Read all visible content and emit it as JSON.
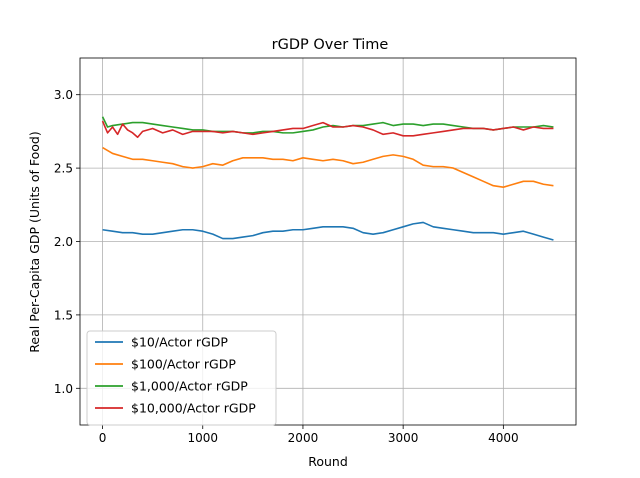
{
  "chart_data": {
    "type": "line",
    "title": "rGDP Over Time",
    "xlabel": "Round",
    "ylabel": "Real Per-Capita GDP (Units of Food)",
    "xlim": [
      -225,
      4725
    ],
    "ylim": [
      0.75,
      3.25
    ],
    "xticks": [
      0,
      1000,
      2000,
      3000,
      4000
    ],
    "yticks": [
      1.0,
      1.5,
      2.0,
      2.5,
      3.0
    ],
    "ytick_labels": [
      "1.0",
      "1.5",
      "2.0",
      "2.5",
      "3.0"
    ],
    "grid": true,
    "legend_position": "lower-left",
    "colors": [
      "#1f77b4",
      "#ff7f0e",
      "#2ca02c",
      "#d62728"
    ],
    "series": [
      {
        "name": "$10/Actor rGDP",
        "x": [
          0,
          100,
          200,
          300,
          400,
          500,
          600,
          700,
          800,
          900,
          1000,
          1100,
          1200,
          1300,
          1400,
          1500,
          1600,
          1700,
          1800,
          1900,
          2000,
          2100,
          2200,
          2300,
          2400,
          2500,
          2600,
          2700,
          2800,
          2900,
          3000,
          3100,
          3200,
          3300,
          3400,
          3500,
          3600,
          3700,
          3800,
          3900,
          4000,
          4100,
          4200,
          4300,
          4400,
          4500
        ],
        "values": [
          2.08,
          2.07,
          2.06,
          2.06,
          2.05,
          2.05,
          2.06,
          2.07,
          2.08,
          2.08,
          2.07,
          2.05,
          2.02,
          2.02,
          2.03,
          2.04,
          2.06,
          2.07,
          2.07,
          2.08,
          2.08,
          2.09,
          2.1,
          2.1,
          2.1,
          2.09,
          2.06,
          2.05,
          2.06,
          2.08,
          2.1,
          2.12,
          2.13,
          2.1,
          2.09,
          2.08,
          2.07,
          2.06,
          2.06,
          2.06,
          2.05,
          2.06,
          2.07,
          2.05,
          2.03,
          2.01
        ]
      },
      {
        "name": "$100/Actor rGDP",
        "x": [
          0,
          100,
          200,
          300,
          400,
          500,
          600,
          700,
          800,
          900,
          1000,
          1100,
          1200,
          1300,
          1400,
          1500,
          1600,
          1700,
          1800,
          1900,
          2000,
          2100,
          2200,
          2300,
          2400,
          2500,
          2600,
          2700,
          2800,
          2900,
          3000,
          3100,
          3200,
          3300,
          3400,
          3500,
          3600,
          3700,
          3800,
          3900,
          4000,
          4100,
          4200,
          4300,
          4400,
          4500
        ],
        "values": [
          2.64,
          2.6,
          2.58,
          2.56,
          2.56,
          2.55,
          2.54,
          2.53,
          2.51,
          2.5,
          2.51,
          2.53,
          2.52,
          2.55,
          2.57,
          2.57,
          2.57,
          2.56,
          2.56,
          2.55,
          2.57,
          2.56,
          2.55,
          2.56,
          2.55,
          2.53,
          2.54,
          2.56,
          2.58,
          2.59,
          2.58,
          2.56,
          2.52,
          2.51,
          2.51,
          2.5,
          2.47,
          2.44,
          2.41,
          2.38,
          2.37,
          2.39,
          2.41,
          2.41,
          2.39,
          2.38
        ]
      },
      {
        "name": "$1,000/Actor rGDP",
        "x": [
          0,
          50,
          100,
          200,
          300,
          400,
          500,
          600,
          700,
          800,
          900,
          1000,
          1100,
          1200,
          1300,
          1400,
          1500,
          1600,
          1700,
          1800,
          1900,
          2000,
          2100,
          2200,
          2300,
          2400,
          2500,
          2600,
          2700,
          2800,
          2900,
          3000,
          3100,
          3200,
          3300,
          3400,
          3500,
          3600,
          3700,
          3800,
          3900,
          4000,
          4100,
          4200,
          4300,
          4400,
          4500
        ],
        "values": [
          2.85,
          2.78,
          2.79,
          2.8,
          2.81,
          2.81,
          2.8,
          2.79,
          2.78,
          2.77,
          2.76,
          2.76,
          2.75,
          2.75,
          2.75,
          2.74,
          2.74,
          2.75,
          2.75,
          2.74,
          2.74,
          2.75,
          2.76,
          2.78,
          2.79,
          2.78,
          2.79,
          2.79,
          2.8,
          2.81,
          2.79,
          2.8,
          2.8,
          2.79,
          2.8,
          2.8,
          2.79,
          2.78,
          2.77,
          2.77,
          2.76,
          2.77,
          2.78,
          2.78,
          2.78,
          2.79,
          2.78
        ]
      },
      {
        "name": "$10,000/Actor rGDP",
        "x": [
          0,
          50,
          100,
          150,
          200,
          250,
          300,
          350,
          400,
          500,
          600,
          700,
          800,
          900,
          1000,
          1100,
          1200,
          1300,
          1400,
          1500,
          1600,
          1700,
          1800,
          1900,
          2000,
          2100,
          2200,
          2300,
          2400,
          2500,
          2600,
          2700,
          2800,
          2900,
          3000,
          3100,
          3200,
          3300,
          3400,
          3500,
          3600,
          3700,
          3800,
          3900,
          4000,
          4100,
          4200,
          4300,
          4400,
          4500
        ],
        "values": [
          2.82,
          2.74,
          2.78,
          2.73,
          2.8,
          2.76,
          2.74,
          2.71,
          2.75,
          2.77,
          2.74,
          2.76,
          2.73,
          2.75,
          2.75,
          2.75,
          2.74,
          2.75,
          2.74,
          2.73,
          2.74,
          2.75,
          2.76,
          2.77,
          2.77,
          2.79,
          2.81,
          2.78,
          2.78,
          2.79,
          2.78,
          2.76,
          2.73,
          2.74,
          2.72,
          2.72,
          2.73,
          2.74,
          2.75,
          2.76,
          2.77,
          2.77,
          2.77,
          2.76,
          2.77,
          2.78,
          2.76,
          2.78,
          2.77,
          2.77
        ]
      }
    ]
  }
}
